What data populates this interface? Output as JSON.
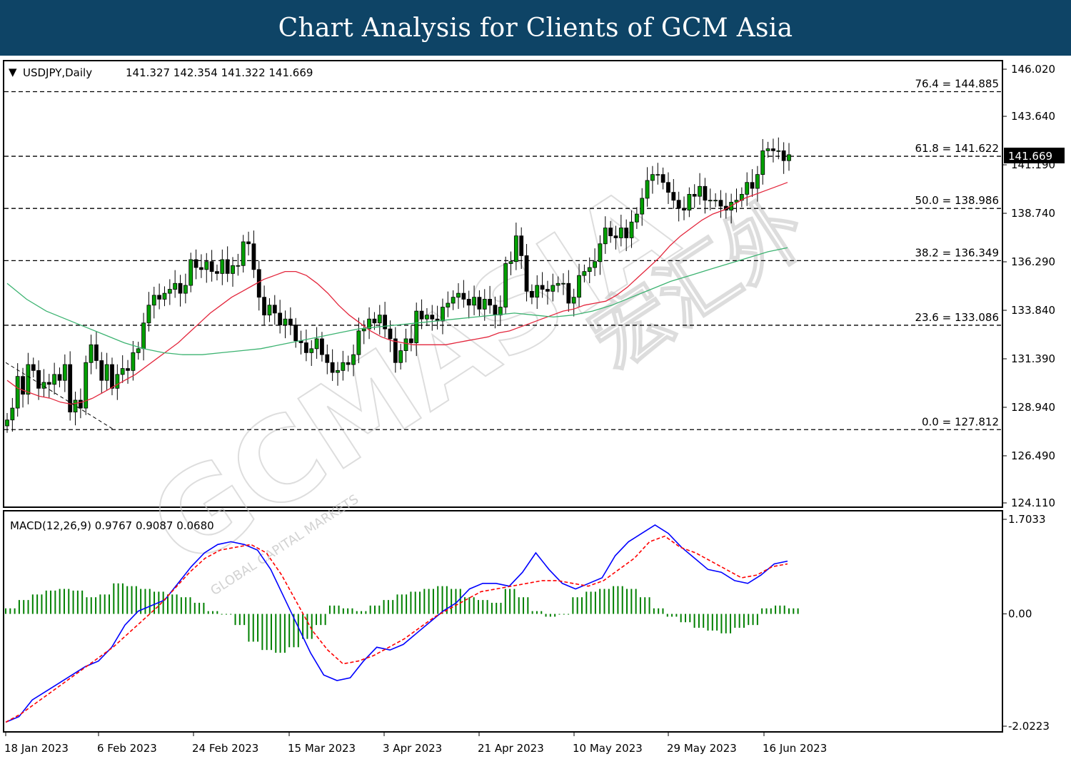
{
  "header": {
    "title": "Chart Analysis for Clients of GCM Asia"
  },
  "watermark": {
    "text": "GCMASIA",
    "brand_cn": "宏汇外",
    "tagline": "GLOBAL CAPITAL MARKETS"
  },
  "chart_data": [
    {
      "type": "candlestick",
      "symbol_label": "USDJPY,Daily",
      "ohlc_label": "141.327 142.354 141.322 141.669",
      "last_price": "141.669",
      "ylim": [
        124.11,
        146.02
      ],
      "y_ticks": [
        "146.020",
        "143.640",
        "141.190",
        "138.740",
        "136.290",
        "133.840",
        "131.390",
        "128.940",
        "126.490",
        "124.110"
      ],
      "x_ticks": [
        "18 Jan 2023",
        "6 Feb 2023",
        "24 Feb 2023",
        "15 Mar 2023",
        "3 Apr 2023",
        "21 Apr 2023",
        "10 May 2023",
        "29 May 2023",
        "16 Jun 2023"
      ],
      "fib_levels": [
        {
          "label": "76.4 = 144.885",
          "value": 144.885
        },
        {
          "label": "61.8 = 141.622",
          "value": 141.622
        },
        {
          "label": "50.0 = 138.986",
          "value": 138.986
        },
        {
          "label": "38.2 = 136.349",
          "value": 136.349
        },
        {
          "label": "23.6 = 133.086",
          "value": 133.086
        },
        {
          "label": "0.0 = 127.812",
          "value": 127.812
        }
      ],
      "closes": [
        128.3,
        128.9,
        130.5,
        129.6,
        131.1,
        130.8,
        129.9,
        130.2,
        130.1,
        130.6,
        130.3,
        131.1,
        128.7,
        129.3,
        128.9,
        131.2,
        132.1,
        131.3,
        130.3,
        131.1,
        129.9,
        130.6,
        130.9,
        130.8,
        131.7,
        131.9,
        133.2,
        134.1,
        134.6,
        134.4,
        134.7,
        134.9,
        135.2,
        134.7,
        135.1,
        136.4,
        136.0,
        135.9,
        136.3,
        135.8,
        135.7,
        136.4,
        135.7,
        136.1,
        136.1,
        137.3,
        137.2,
        135.9,
        134.5,
        133.6,
        134.1,
        133.7,
        133.1,
        133.4,
        133.1,
        132.3,
        132.2,
        131.7,
        131.9,
        132.4,
        131.6,
        131.2,
        130.7,
        130.8,
        131.2,
        131.1,
        131.6,
        132.8,
        132.9,
        133.4,
        133.2,
        133.6,
        132.9,
        132.4,
        131.2,
        131.8,
        132.4,
        132.2,
        133.8,
        133.4,
        133.6,
        133.4,
        133.3,
        134.0,
        134.2,
        134.5,
        134.7,
        134.4,
        134.1,
        134.5,
        133.9,
        134.4,
        134.1,
        133.6,
        134.0,
        136.2,
        136.3,
        137.6,
        136.6,
        134.8,
        134.5,
        135.1,
        134.9,
        134.8,
        135.1,
        135.2,
        135.2,
        134.2,
        134.5,
        135.6,
        135.8,
        136.0,
        136.3,
        137.2,
        138.0,
        137.6,
        137.5,
        138.0,
        137.5,
        138.3,
        138.7,
        139.5,
        140.4,
        140.7,
        140.7,
        140.3,
        139.8,
        139.4,
        139.0,
        138.9,
        139.7,
        139.6,
        140.1,
        139.4,
        139.4,
        139.4,
        139.1,
        138.9,
        139.3,
        139.4,
        139.7,
        140.3,
        140.0,
        140.7,
        141.9,
        142.0,
        141.9,
        141.9,
        141.4,
        141.7
      ],
      "series": [
        {
          "name": "MA (red)",
          "color": "#e3263c",
          "values": [
            130.3,
            129.9,
            129.7,
            129.5,
            129.4,
            129.2,
            129.1,
            129.2,
            129.4,
            129.7,
            130.0,
            130.3,
            130.6,
            131.0,
            131.4,
            131.8,
            132.2,
            132.7,
            133.2,
            133.7,
            134.1,
            134.5,
            134.8,
            135.1,
            135.4,
            135.6,
            135.8,
            135.8,
            135.6,
            135.2,
            134.7,
            134.1,
            133.6,
            133.2,
            132.8,
            132.5,
            132.3,
            132.2,
            132.1,
            132.1,
            132.1,
            132.1,
            132.2,
            132.3,
            132.4,
            132.5,
            132.7,
            132.8,
            133.0,
            133.2,
            133.4,
            133.6,
            133.8,
            133.9,
            134.1,
            134.2,
            134.3,
            134.6,
            135.0,
            135.5,
            136.0,
            136.5,
            137.1,
            137.6,
            138.0,
            138.4,
            138.7,
            138.9,
            139.2,
            139.5,
            139.7,
            139.9,
            140.1,
            140.3
          ]
        },
        {
          "name": "MA (green)",
          "color": "#3cb371",
          "values": [
            135.2,
            134.4,
            133.8,
            133.4,
            133.0,
            132.6,
            132.2,
            131.9,
            131.7,
            131.6,
            131.6,
            131.7,
            131.8,
            131.9,
            132.1,
            132.3,
            132.5,
            132.7,
            132.9,
            133.0,
            133.1,
            133.2,
            133.3,
            133.4,
            133.5,
            133.6,
            133.7,
            133.6,
            133.5,
            133.6,
            133.8,
            134.1,
            134.5,
            134.9,
            135.3,
            135.6,
            135.9,
            136.2,
            136.5,
            136.8,
            137.0
          ]
        }
      ]
    },
    {
      "type": "macd",
      "label": "MACD(12,26,9) 0.9767 0.9087 0.0680",
      "ylim": [
        -2.0223,
        1.7033
      ],
      "y_ticks": [
        "1.7033",
        "0.00",
        "-2.0223"
      ],
      "series": [
        {
          "name": "MACD",
          "color": "#0000ff",
          "values": [
            -1.95,
            -1.85,
            -1.55,
            -1.4,
            -1.25,
            -1.1,
            -0.95,
            -0.85,
            -0.6,
            -0.2,
            0.05,
            0.15,
            0.25,
            0.55,
            0.85,
            1.1,
            1.25,
            1.3,
            1.25,
            1.15,
            0.8,
            0.3,
            -0.2,
            -0.7,
            -1.1,
            -1.2,
            -1.15,
            -0.85,
            -0.6,
            -0.65,
            -0.55,
            -0.35,
            -0.15,
            0.05,
            0.2,
            0.45,
            0.55,
            0.55,
            0.5,
            0.75,
            1.1,
            0.8,
            0.55,
            0.45,
            0.55,
            0.65,
            1.05,
            1.3,
            1.45,
            1.6,
            1.45,
            1.2,
            1.0,
            0.8,
            0.75,
            0.6,
            0.55,
            0.7,
            0.9,
            0.95
          ]
        },
        {
          "name": "Signal",
          "color": "#ff0000",
          "values": [
            -1.95,
            -1.8,
            -1.6,
            -1.4,
            -1.2,
            -1.0,
            -0.8,
            -0.6,
            -0.35,
            -0.1,
            0.15,
            0.45,
            0.75,
            1.0,
            1.15,
            1.2,
            1.25,
            1.1,
            0.7,
            0.2,
            -0.3,
            -0.65,
            -0.9,
            -0.85,
            -0.75,
            -0.6,
            -0.45,
            -0.25,
            -0.05,
            0.1,
            0.25,
            0.4,
            0.45,
            0.5,
            0.55,
            0.6,
            0.6,
            0.55,
            0.5,
            0.6,
            0.8,
            1.0,
            1.3,
            1.4,
            1.2,
            1.1,
            0.95,
            0.8,
            0.65,
            0.7,
            0.85,
            0.9
          ]
        },
        {
          "name": "Histogram",
          "color": "#008000",
          "values": [
            0.1,
            0.25,
            0.35,
            0.42,
            0.45,
            0.42,
            0.3,
            0.35,
            0.55,
            0.5,
            0.45,
            0.4,
            0.35,
            0.3,
            0.2,
            0.05,
            0.0,
            -0.2,
            -0.5,
            -0.65,
            -0.7,
            -0.6,
            -0.45,
            -0.2,
            0.15,
            0.1,
            0.05,
            0.15,
            0.25,
            0.35,
            0.4,
            0.45,
            0.5,
            0.45,
            0.3,
            0.25,
            0.2,
            0.45,
            0.3,
            0.05,
            -0.05,
            0.0,
            0.3,
            0.4,
            0.45,
            0.5,
            0.45,
            0.3,
            0.1,
            -0.05,
            -0.15,
            -0.25,
            -0.3,
            -0.35,
            -0.25,
            -0.2,
            0.1,
            0.15,
            0.1
          ]
        }
      ]
    }
  ]
}
